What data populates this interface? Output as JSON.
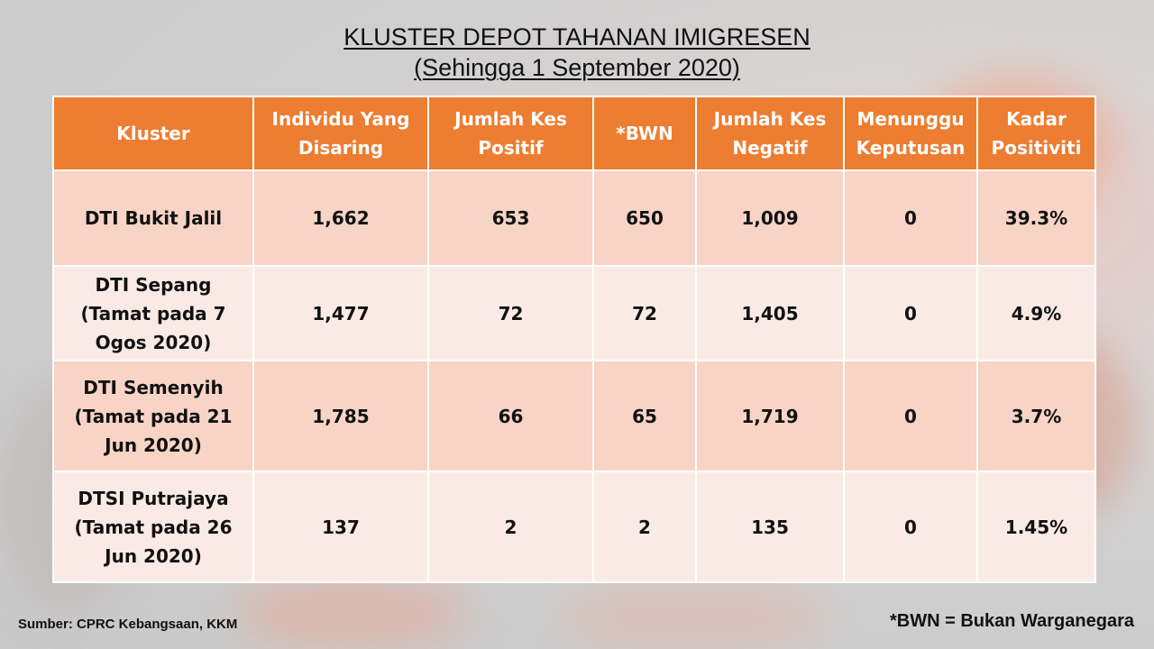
{
  "title": {
    "line1": "KLUSTER DEPOT TAHANAN IMIGRESEN",
    "line2": "(Sehingga 1 September 2020)"
  },
  "table": {
    "headers": [
      [
        "Kluster"
      ],
      [
        "Individu Yang",
        "Disaring"
      ],
      [
        "Jumlah Kes",
        "Positif"
      ],
      [
        "*BWN"
      ],
      [
        "Jumlah Kes",
        "Negatif"
      ],
      [
        "Menunggu",
        "Keputusan"
      ],
      [
        "Kadar",
        "Positiviti"
      ]
    ],
    "rows": [
      {
        "kluster": [
          "DTI Bukit Jalil"
        ],
        "individu": "1,662",
        "positif": "653",
        "bwn": "650",
        "negatif": "1,009",
        "menunggu": "0",
        "kadar": "39.3%"
      },
      {
        "kluster": [
          "DTI Sepang",
          "(Tamat pada 7",
          "Ogos 2020)"
        ],
        "individu": "1,477",
        "positif": "72",
        "bwn": "72",
        "negatif": "1,405",
        "menunggu": "0",
        "kadar": "4.9%"
      },
      {
        "kluster": [
          "DTI Semenyih",
          "(Tamat pada 21",
          "Jun 2020)"
        ],
        "individu": "1,785",
        "positif": "66",
        "bwn": "65",
        "negatif": "1,719",
        "menunggu": "0",
        "kadar": "3.7%"
      },
      {
        "kluster": [
          "DTSI Putrajaya",
          "(Tamat pada 26",
          "Jun 2020)"
        ],
        "individu": "137",
        "positif": "2",
        "bwn": "2",
        "negatif": "135",
        "menunggu": "0",
        "kadar": "1.45%"
      }
    ]
  },
  "footer": {
    "source": "Sumber: CPRC Kebangsaan, KKM",
    "note": "*BWN = Bukan Warganegara"
  },
  "colors": {
    "header_bg": "#ed7d31",
    "row_dark": "#f7d4c6",
    "row_light": "#faeae6"
  }
}
